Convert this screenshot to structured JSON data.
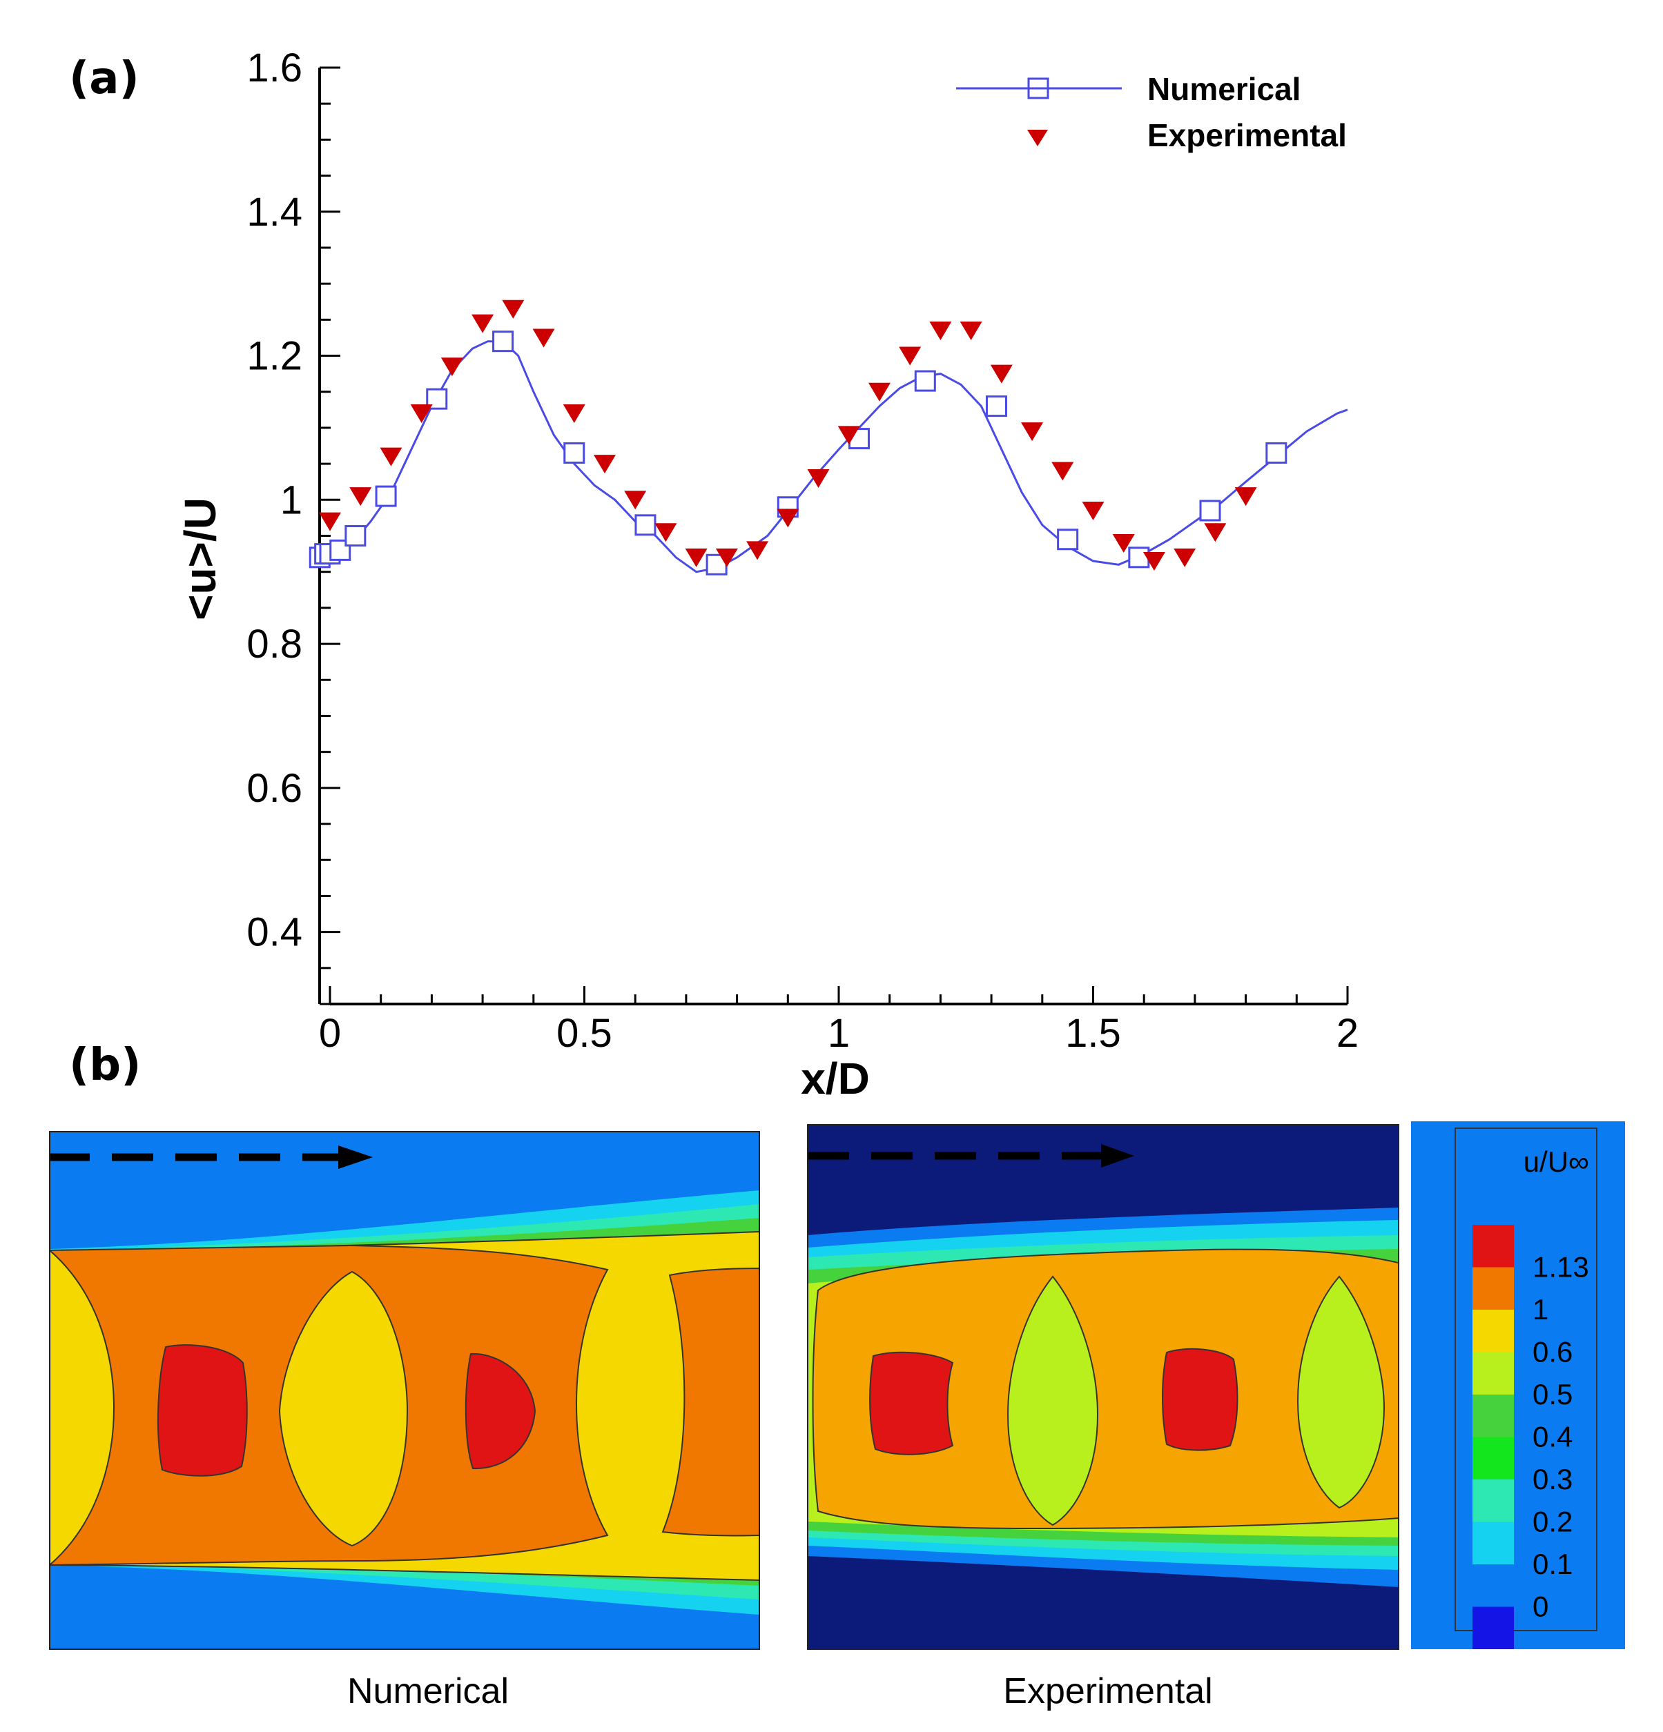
{
  "panel_labels": {
    "a": "(a)",
    "b": "(b)"
  },
  "colors": {
    "numerical": "#4a4ae6",
    "experimental": "#cc0000",
    "contour_background_numerical": "#0a7bf0",
    "contour_background_experimental": "#0c1a7a",
    "colorbar_panel": "#0a7bf0"
  },
  "chart_data": [
    {
      "type": "line",
      "title": "",
      "xlabel": "x/D",
      "ylabel": "<u>/U",
      "xlim": [
        0,
        2
      ],
      "ylim": [
        0.3,
        1.6
      ],
      "x_ticks": [
        0,
        0.5,
        1,
        1.5,
        2
      ],
      "x_tick_labels": [
        "0",
        "0.5",
        "1",
        "1.5",
        "2"
      ],
      "y_ticks": [
        0.4,
        0.6,
        0.8,
        1.0,
        1.2,
        1.4,
        1.6
      ],
      "y_tick_labels": [
        "0.4",
        "0.6",
        "0.8",
        "1",
        "1.2",
        "1.4",
        "1.6"
      ],
      "grid": false,
      "legend": {
        "position": "top-right",
        "entries": [
          "Numerical",
          "Experimental"
        ]
      },
      "series": [
        {
          "name": "Numerical",
          "style": "line-with-open-squares",
          "curve_x": [
            -0.02,
            0.0,
            0.02,
            0.05,
            0.08,
            0.12,
            0.16,
            0.2,
            0.24,
            0.28,
            0.31,
            0.34,
            0.37,
            0.4,
            0.44,
            0.48,
            0.52,
            0.56,
            0.6,
            0.64,
            0.68,
            0.72,
            0.76,
            0.8,
            0.86,
            0.9,
            0.95,
            1.0,
            1.04,
            1.08,
            1.12,
            1.16,
            1.2,
            1.24,
            1.28,
            1.32,
            1.36,
            1.4,
            1.45,
            1.5,
            1.55,
            1.6,
            1.65,
            1.7,
            1.75,
            1.8,
            1.86,
            1.92,
            1.98,
            2.0
          ],
          "curve_y": [
            0.92,
            0.925,
            0.93,
            0.945,
            0.97,
            1.01,
            1.07,
            1.13,
            1.18,
            1.21,
            1.22,
            1.22,
            1.2,
            1.15,
            1.09,
            1.05,
            1.02,
            1.0,
            0.97,
            0.95,
            0.92,
            0.9,
            0.905,
            0.92,
            0.95,
            0.985,
            1.03,
            1.07,
            1.1,
            1.13,
            1.155,
            1.17,
            1.175,
            1.16,
            1.13,
            1.07,
            1.01,
            0.965,
            0.935,
            0.915,
            0.91,
            0.925,
            0.945,
            0.97,
            0.995,
            1.025,
            1.06,
            1.095,
            1.12,
            1.125
          ],
          "marker_x": [
            -0.02,
            -0.01,
            0.0,
            0.02,
            0.05,
            0.11,
            0.21,
            0.34,
            0.48,
            0.62,
            0.76,
            0.9,
            1.04,
            1.17,
            1.31,
            1.45,
            1.59,
            1.73,
            1.86
          ],
          "marker_y": [
            0.92,
            0.925,
            0.925,
            0.93,
            0.95,
            1.005,
            1.14,
            1.22,
            1.065,
            0.965,
            0.91,
            0.99,
            1.085,
            1.165,
            1.13,
            0.945,
            0.92,
            0.985,
            1.065
          ]
        },
        {
          "name": "Experimental",
          "style": "filled-down-triangles",
          "x": [
            0.0,
            0.06,
            0.12,
            0.18,
            0.24,
            0.3,
            0.36,
            0.42,
            0.48,
            0.54,
            0.6,
            0.66,
            0.72,
            0.78,
            0.84,
            0.9,
            0.96,
            1.02,
            1.08,
            1.14,
            1.2,
            1.26,
            1.32,
            1.38,
            1.44,
            1.5,
            1.56,
            1.62,
            1.68,
            1.74,
            1.8
          ],
          "y": [
            0.97,
            1.005,
            1.06,
            1.12,
            1.185,
            1.245,
            1.265,
            1.225,
            1.12,
            1.05,
            1.0,
            0.955,
            0.92,
            0.92,
            0.93,
            0.975,
            1.03,
            1.09,
            1.15,
            1.2,
            1.235,
            1.235,
            1.175,
            1.095,
            1.04,
            0.985,
            0.94,
            0.915,
            0.92,
            0.955,
            1.005
          ]
        }
      ]
    },
    {
      "type": "heatmap",
      "title": "Numerical",
      "description_label": "Numerical",
      "flow_arrow": "left-to-right"
    },
    {
      "type": "heatmap",
      "title": "Experimental",
      "description_label": "Experimental",
      "flow_arrow": "left-to-right"
    }
  ],
  "colorbar": {
    "title": "u/U∞",
    "levels": [
      {
        "label": "1.13",
        "color": "#e01414"
      },
      {
        "label": "1",
        "color": "#f07800"
      },
      {
        "label": "0.6",
        "color": "#f5d800"
      },
      {
        "label": "0.5",
        "color": "#b8f01e"
      },
      {
        "label": "0.4",
        "color": "#46d23c"
      },
      {
        "label": "0.3",
        "color": "#14e61e"
      },
      {
        "label": "0.2",
        "color": "#2ee8b4"
      },
      {
        "label": "0.1",
        "color": "#14d2f0"
      },
      {
        "label": "0",
        "color": "#0a7bf0"
      },
      {
        "label": "",
        "color": "#1414e6"
      }
    ]
  }
}
